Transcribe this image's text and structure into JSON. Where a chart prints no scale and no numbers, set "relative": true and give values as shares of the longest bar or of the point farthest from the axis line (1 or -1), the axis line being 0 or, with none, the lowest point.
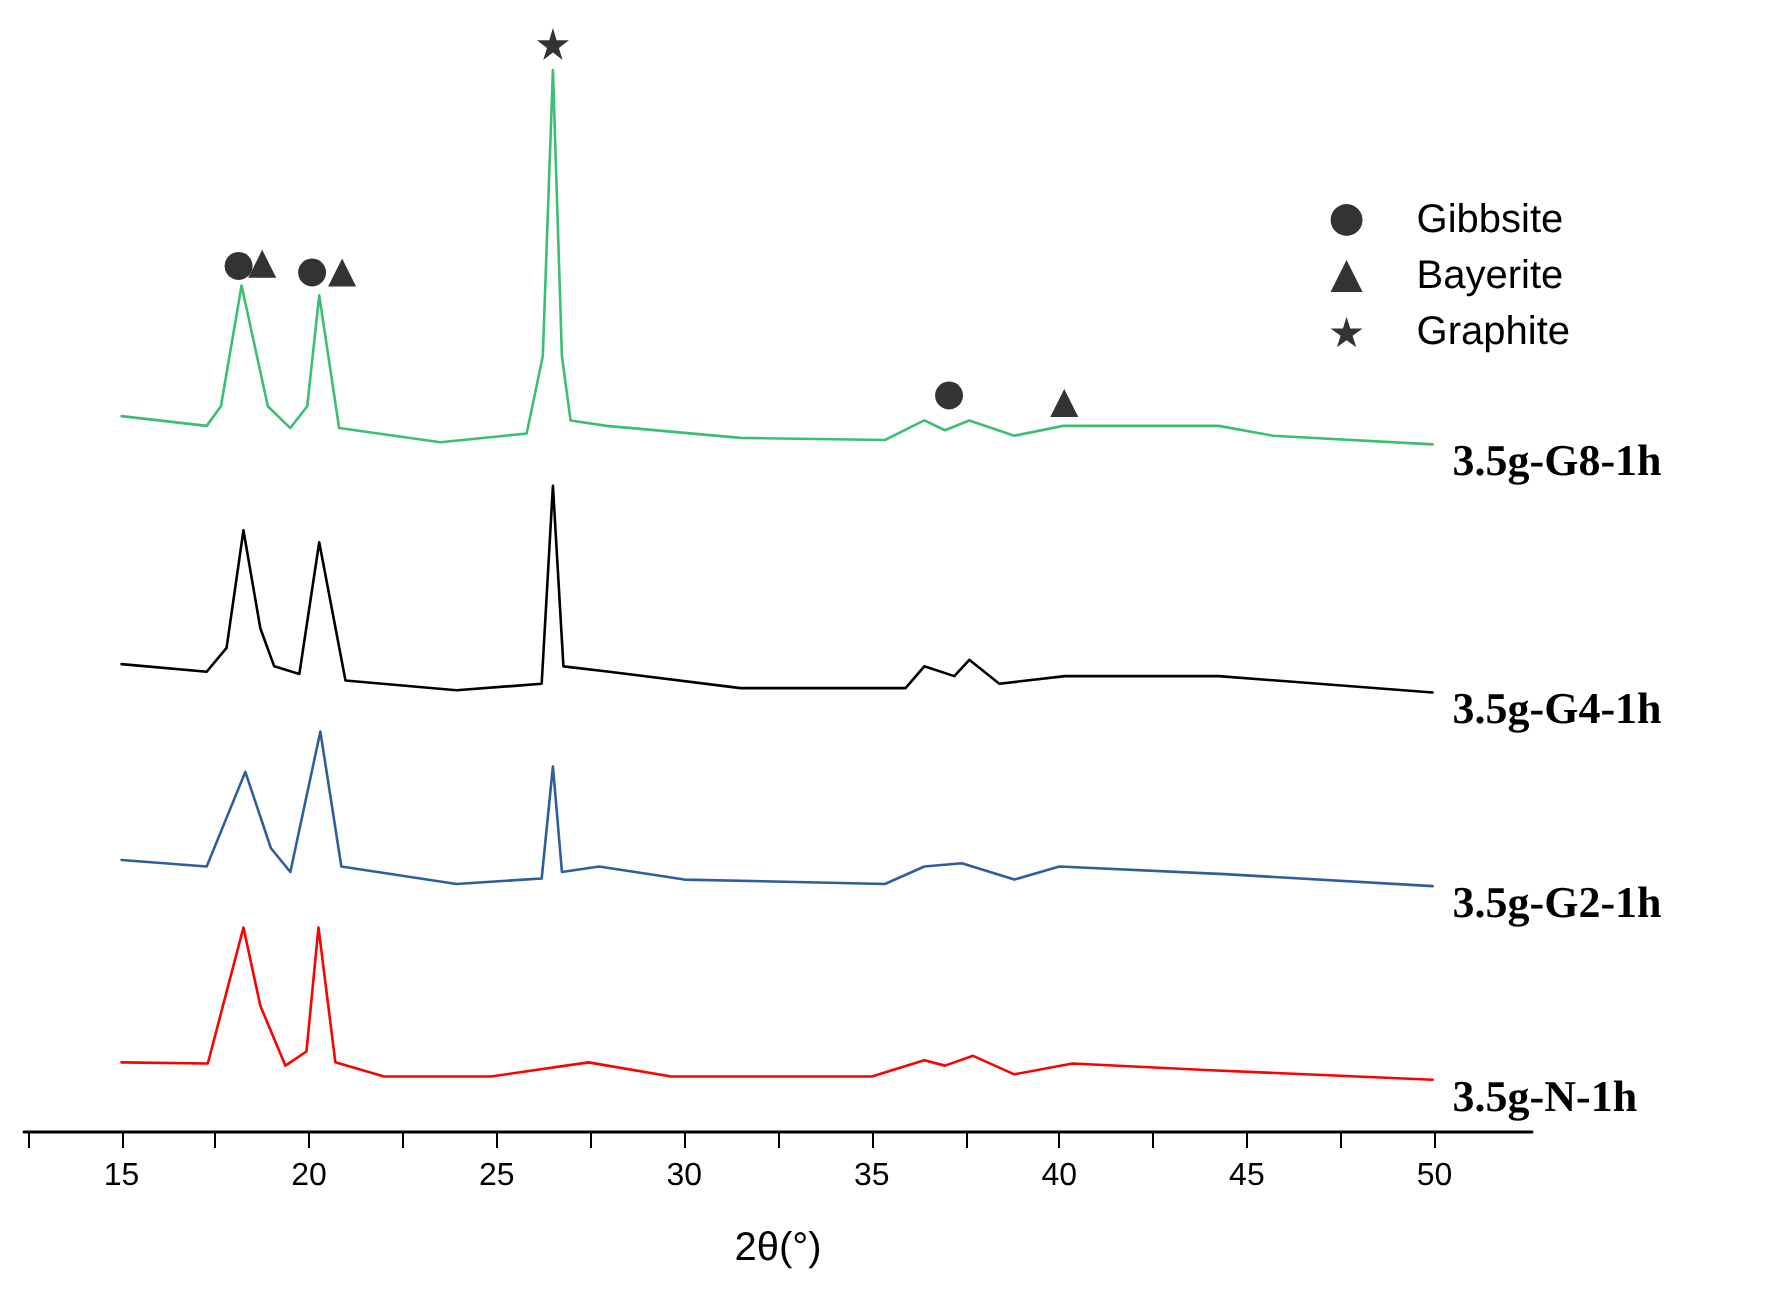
{
  "chart_data": {
    "type": "line",
    "relative": true,
    "xlabel": "2θ(°)",
    "xlim": [
      12.4,
      52.6
    ],
    "xticks": [
      {
        "value": 12.5,
        "label": null
      },
      15,
      {
        "value": 17.5,
        "label": null
      },
      20,
      {
        "value": 22.5,
        "label": null
      },
      25,
      {
        "value": 27.5,
        "label": null
      },
      30,
      {
        "value": 32.5,
        "label": null
      },
      35,
      {
        "value": 37.5,
        "label": null
      },
      40,
      {
        "value": 42.5,
        "label": null
      },
      45,
      {
        "value": 47.5,
        "label": null
      },
      50
    ],
    "grid": false,
    "legend": "top right",
    "marker": "none",
    "line_style": "solid",
    "series": [
      {
        "name": "3.5g-G8-1h",
        "color": "#3cbf73",
        "x": [
          15,
          17.27,
          17.65,
          18.2,
          18.9,
          19.5,
          19.95,
          20.27,
          20.8,
          23.5,
          25.8,
          26.23,
          26.5,
          26.74,
          26.97,
          27.93,
          31.5,
          35.35,
          36.4,
          36.95,
          37.6,
          38.8,
          40.1,
          44.25,
          45.7,
          49.95
        ],
        "values": [
          0.658,
          0.649,
          0.667,
          0.778,
          0.667,
          0.647,
          0.667,
          0.769,
          0.647,
          0.634,
          0.642,
          0.713,
          0.976,
          0.713,
          0.654,
          0.649,
          0.638,
          0.636,
          0.654,
          0.645,
          0.654,
          0.64,
          0.649,
          0.649,
          0.64,
          0.632
        ]
      },
      {
        "name": "3.5g-G4-1h",
        "color": "#000000",
        "x": [
          15,
          17.27,
          17.8,
          18.25,
          18.7,
          19.07,
          19.74,
          20.27,
          20.97,
          23.93,
          26.2,
          26.5,
          26.78,
          28.0,
          31.5,
          35.9,
          36.4,
          37.2,
          37.6,
          38.4,
          40.15,
          44.25,
          49.95
        ],
        "values": [
          0.43,
          0.423,
          0.445,
          0.553,
          0.463,
          0.428,
          0.421,
          0.542,
          0.415,
          0.406,
          0.412,
          0.594,
          0.428,
          0.423,
          0.408,
          0.408,
          0.428,
          0.419,
          0.434,
          0.412,
          0.419,
          0.419,
          0.404
        ]
      },
      {
        "name": "3.5g-G2-1h",
        "color": "#2e5f9a",
        "x": [
          15,
          17.27,
          18.3,
          18.98,
          19.5,
          20.3,
          20.86,
          23.93,
          26.2,
          26.5,
          26.74,
          27.73,
          30.0,
          35.35,
          36.4,
          37.4,
          38.8,
          40.0,
          44.4,
          49.95
        ],
        "values": [
          0.25,
          0.244,
          0.331,
          0.261,
          0.239,
          0.368,
          0.244,
          0.228,
          0.233,
          0.336,
          0.239,
          0.244,
          0.232,
          0.228,
          0.244,
          0.247,
          0.232,
          0.244,
          0.237,
          0.226
        ]
      },
      {
        "name": "3.5g-N-1h",
        "color": "#ff0000",
        "x": [
          15,
          17.3,
          18.25,
          18.7,
          19.37,
          19.93,
          20.25,
          20.7,
          22.0,
          24.85,
          27.45,
          29.65,
          35.0,
          36.4,
          36.95,
          37.7,
          38.8,
          40.35,
          43.9,
          49.95
        ],
        "values": [
          0.064,
          0.063,
          0.188,
          0.116,
          0.061,
          0.074,
          0.188,
          0.064,
          0.051,
          0.051,
          0.064,
          0.051,
          0.051,
          0.066,
          0.061,
          0.07,
          0.053,
          0.063,
          0.057,
          0.048
        ]
      },
      {
        "name": "Gibbsite",
        "type": "scatter",
        "marker": "circle",
        "color": "#000000",
        "x": [
          18.12,
          20.08,
          37.06
        ],
        "values": [
          0.796,
          0.79,
          0.677
        ]
      },
      {
        "name": "Bayerite",
        "type": "scatter",
        "marker": "triangle",
        "color": "#000000",
        "x": [
          18.75,
          20.88,
          40.13
        ],
        "values": [
          0.798,
          0.79,
          0.67
        ]
      },
      {
        "name": "Graphite",
        "type": "scatter",
        "marker": "star",
        "color": "#000000",
        "x": [
          26.5
        ],
        "values": [
          1
        ]
      }
    ]
  }
}
